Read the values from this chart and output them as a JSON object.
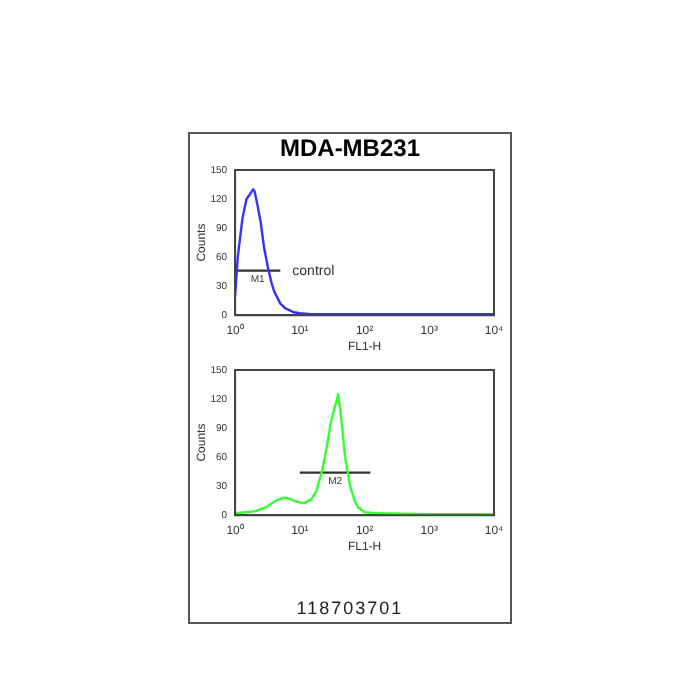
{
  "chart_data": [
    {
      "type": "line",
      "title": "MDA-MB231",
      "xlabel": "FL1-H",
      "ylabel": "Counts",
      "log": "x",
      "grid": false,
      "legend": false,
      "marker": "none",
      "x": [
        1,
        1.1,
        1.3,
        1.5,
        1.7,
        1.9,
        2,
        2.2,
        2.5,
        2.8,
        3.2,
        3.6,
        4,
        4.5,
        5,
        6,
        7,
        8,
        10,
        15,
        20,
        50,
        100,
        1000,
        10000
      ],
      "series": [
        {
          "color": "#3333ff",
          "values": [
            20,
            60,
            100,
            120,
            125,
            130,
            128,
            115,
            95,
            70,
            50,
            35,
            25,
            18,
            12,
            7,
            5,
            3,
            2,
            1,
            1,
            1,
            1,
            1,
            1
          ]
        },
        {
          "type": "line",
          "name": "M1",
          "color": "#333333",
          "x": [
            1,
            5
          ],
          "values": [
            46,
            46
          ]
        }
      ],
      "xlim": [
        1,
        10000
      ],
      "xticks": [
        {
          "value": 1,
          "label": "10⁰"
        },
        {
          "value": 10,
          "label": "10¹"
        },
        {
          "value": 100,
          "label": "10²"
        },
        {
          "value": 1000,
          "label": "10³"
        },
        {
          "value": 10000,
          "label": "10⁴"
        }
      ],
      "ylim": [
        0,
        150
      ],
      "yticks": [
        0,
        30,
        60,
        90,
        120,
        150
      ],
      "annotations": [
        {
          "text": "control",
          "x": 5,
          "y": 46
        }
      ]
    },
    {
      "type": "line",
      "xlabel": "FL1-H",
      "ylabel": "Counts",
      "log": "x",
      "grid": false,
      "legend": false,
      "marker": "none",
      "x": [
        1,
        2,
        3,
        4,
        5,
        6,
        7,
        8,
        10,
        12,
        15,
        18,
        22,
        26,
        30,
        34,
        37,
        39,
        42,
        46,
        50,
        60,
        70,
        80,
        100,
        150,
        1000,
        10000
      ],
      "series": [
        {
          "color": "#33ff33",
          "values": [
            2,
            4,
            8,
            14,
            17,
            18,
            17,
            15,
            13,
            13,
            16,
            25,
            45,
            70,
            95,
            110,
            118,
            125,
            110,
            85,
            60,
            30,
            15,
            8,
            3,
            2,
            1,
            1
          ]
        },
        {
          "type": "line",
          "name": "M2",
          "color": "#333333",
          "x": [
            10,
            123
          ],
          "values": [
            44,
            44
          ]
        }
      ],
      "xlim": [
        1,
        10000
      ],
      "xticks": [
        {
          "value": 1,
          "label": "10⁰"
        },
        {
          "value": 10,
          "label": "10¹"
        },
        {
          "value": 100,
          "label": "10²"
        },
        {
          "value": 1000,
          "label": "10³"
        },
        {
          "value": 10000,
          "label": "10⁴"
        }
      ],
      "ylim": [
        0,
        150
      ],
      "yticks": [
        0,
        30,
        60,
        90,
        120,
        150
      ],
      "annotations": [
        "118703701"
      ]
    }
  ]
}
